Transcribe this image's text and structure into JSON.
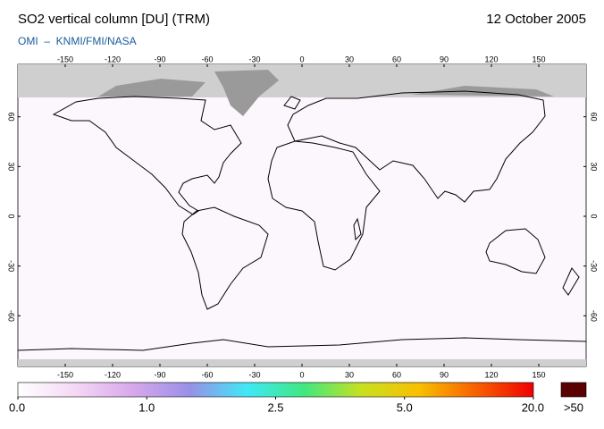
{
  "map": {
    "title": "SO2 vertical column [DU] (TRM)",
    "date": "12 October 2005",
    "subtitle": "OMI  –  KNMI/FMI/NASA",
    "lon_ticks": [
      -150,
      -120,
      -90,
      -60,
      -30,
      0,
      30,
      60,
      90,
      120,
      150
    ],
    "lat_ticks": [
      60,
      30,
      0,
      -30,
      -60
    ],
    "colorbar": {
      "ticks": [
        {
          "value": 0,
          "label": "0.0"
        },
        {
          "value": 1,
          "label": "1.0"
        },
        2.5,
        {
          "value": 5,
          "label": "5.0"
        },
        {
          "value": 20,
          "label": "20.0"
        }
      ],
      "overflow_label": ">50",
      "colors": [
        "#ffffff",
        "#f4d8f4",
        "#d8a8ec",
        "#9890e8",
        "#40e8f8",
        "#40e880",
        "#c8e020",
        "#f8c000",
        "#f86000",
        "#f00000"
      ],
      "overflow_color": "#5a0000"
    }
  }
}
